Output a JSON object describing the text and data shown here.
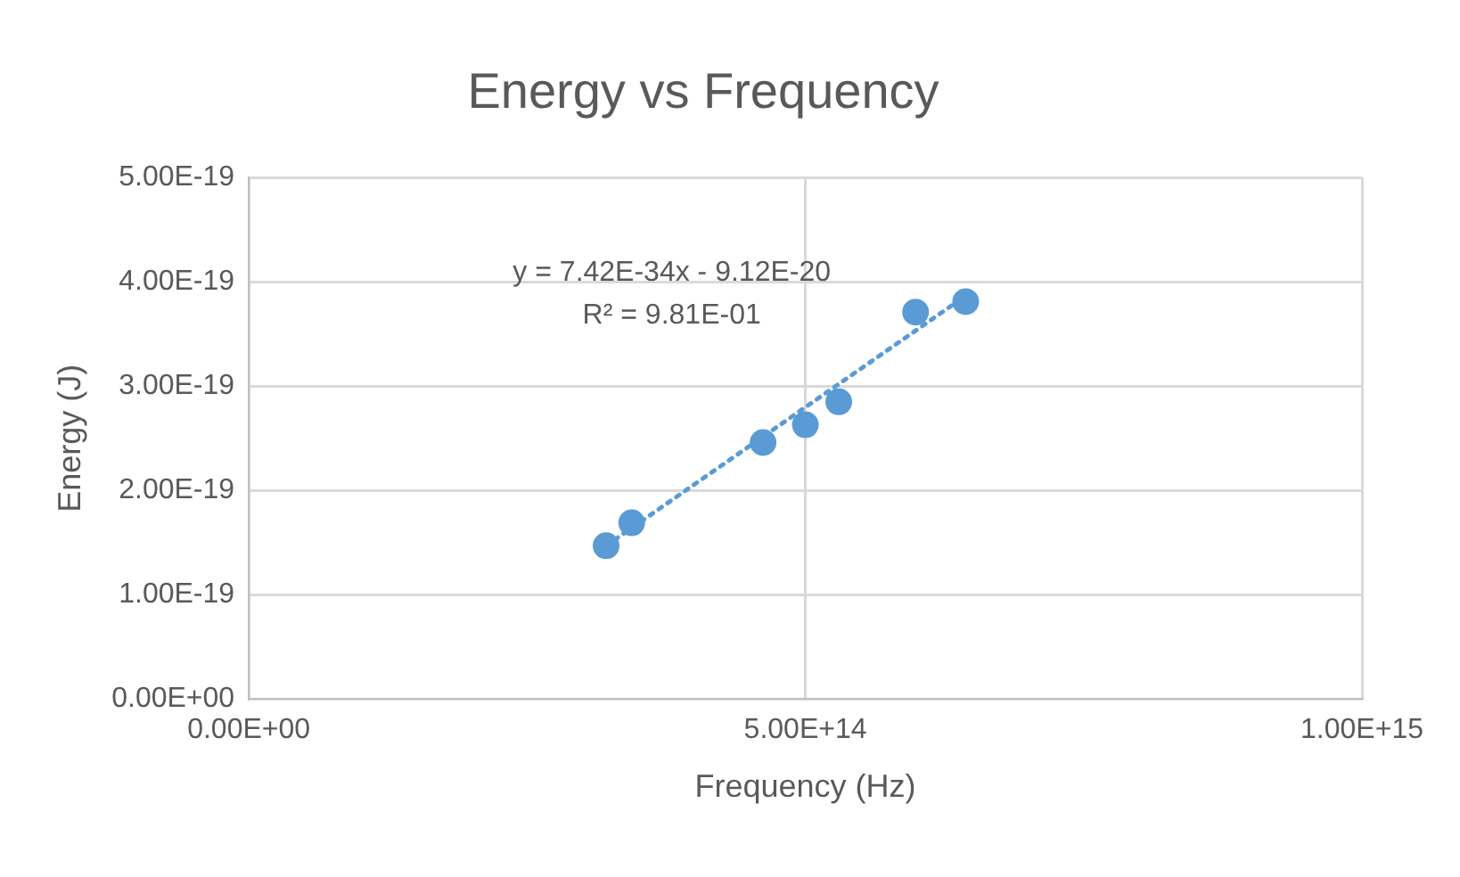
{
  "chart_data": {
    "type": "scatter",
    "title": "Energy vs Frequency",
    "xlabel": "Frequency (Hz)",
    "ylabel": "Energy (J)",
    "xlim": [
      0,
      1000000000000000.0
    ],
    "xticks": [
      {
        "value": 0,
        "label": "0.00E+00"
      },
      {
        "value": 500000000000000.0,
        "label": "5.00E+14"
      },
      {
        "value": 1000000000000000.0,
        "label": "1.00E+15"
      }
    ],
    "ylim": [
      0,
      5e-19
    ],
    "yticks": [
      {
        "value": 0,
        "label": "0.00E+00"
      },
      {
        "value": 1e-19,
        "label": "1.00E-19"
      },
      {
        "value": 2e-19,
        "label": "2.00E-19"
      },
      {
        "value": 3e-19,
        "label": "3.00E-19"
      },
      {
        "value": 4e-19,
        "label": "4.00E-19"
      },
      {
        "value": 5e-19,
        "label": "5.00E-19"
      }
    ],
    "grid": true,
    "legend": false,
    "marker": "circle",
    "series": [
      {
        "color": "#5b9bd5",
        "x": [
          321000000000000.0,
          344000000000000.0,
          462000000000000.0,
          500000000000000.0,
          530000000000000.0,
          599000000000000.0,
          644000000000000.0
        ],
        "values": [
          1.47e-19,
          1.69e-19,
          2.46e-19,
          2.63e-19,
          2.85e-19,
          3.71e-19,
          3.81e-19
        ]
      },
      {
        "type": "line",
        "color": "#5b9bd5",
        "marker": "none",
        "line_style": "dotted",
        "x": [
          321000000000000.0,
          644000000000000.0
        ],
        "values": [
          1.47e-19,
          3.866e-19
        ]
      }
    ],
    "annotations": [
      "y = 7.42E-34x - 9.12E-20",
      "R² = 9.81E-01"
    ]
  }
}
